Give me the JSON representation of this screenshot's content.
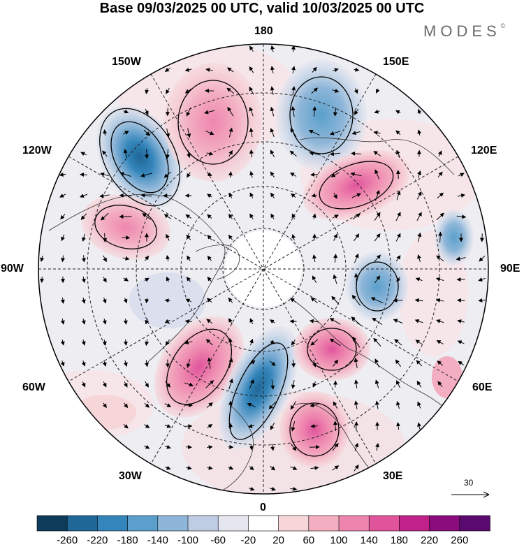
{
  "title": "Base 09/03/2025 00 UTC, valid 10/03/2025 00 UTC",
  "brand": "MODES",
  "brand_mark": "©",
  "longitude_labels": {
    "n180": "180",
    "w150": "150W",
    "e150": "150E",
    "w120": "120W",
    "e120": "120E",
    "w90": "90W",
    "e90": "90E",
    "w60": "60W",
    "e60": "60E",
    "w30": "30W",
    "e30": "30E",
    "s0": "0"
  },
  "reference_vector": "30",
  "colorbar": {
    "ticks": [
      "-260",
      "-220",
      "-180",
      "-140",
      "-100",
      "-60",
      "-20",
      "20",
      "60",
      "100",
      "140",
      "180",
      "220",
      "260"
    ],
    "colors": [
      "#0d3b5a",
      "#1f6796",
      "#3385bb",
      "#5ba0cc",
      "#8eb6d8",
      "#bfcde4",
      "#e5e6f0",
      "#ffffff",
      "#f7d6d9",
      "#f3aec1",
      "#ee85ae",
      "#e0549c",
      "#c0228a",
      "#8a0c7d",
      "#5a0a6e"
    ]
  },
  "anomaly_centers": [
    {
      "lat_label": "near 120W-150W",
      "sign": "negative",
      "level": -220
    },
    {
      "lat_label": "near 150W-180",
      "sign": "positive",
      "level": 120
    },
    {
      "lat_label": "near 150E-180",
      "sign": "negative",
      "level": -100
    },
    {
      "lat_label": "near 120E",
      "sign": "positive",
      "level": 160
    },
    {
      "lat_label": "near 90W-120W",
      "sign": "positive",
      "level": 140
    },
    {
      "lat_label": "near 90E",
      "sign": "negative",
      "level": -100
    },
    {
      "lat_label": "near 60W",
      "sign": "positive",
      "level": 180
    },
    {
      "lat_label": "near 0-30W",
      "sign": "negative",
      "level": -160
    },
    {
      "lat_label": "near 30E-60E",
      "sign": "positive",
      "level": 150
    },
    {
      "lat_label": "near 30E",
      "sign": "positive",
      "level": 140
    }
  ]
}
